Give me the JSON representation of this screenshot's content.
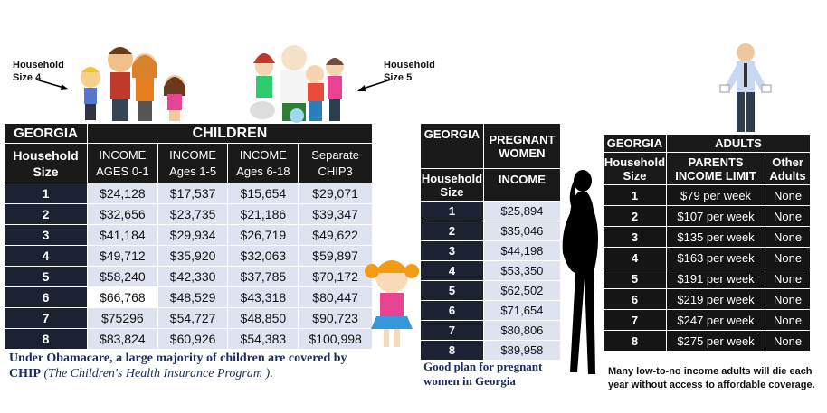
{
  "annotations": {
    "left_label": "Household\nSize 4",
    "right_label": "Household\nSize 5"
  },
  "children_table": {
    "state": "GEORGIA",
    "group": "CHILDREN",
    "size_header": "Household Size",
    "columns": [
      "INCOME\nAGES 0-1",
      "INCOME\nAges 1-5",
      "INCOME\nAges 6-18",
      "Separate\nCHIP3"
    ],
    "rows": [
      {
        "size": "1",
        "values": [
          "$24,128",
          "$17,537",
          "$15,654",
          "$29,071"
        ]
      },
      {
        "size": "2",
        "values": [
          "$32,656",
          "$23,735",
          "$21,186",
          "$39,347"
        ]
      },
      {
        "size": "3",
        "values": [
          "$41,184",
          "$29,934",
          "$26,719",
          "$49,622"
        ]
      },
      {
        "size": "4",
        "values": [
          "$49,712",
          "$35,920",
          "$32,063",
          "$59,897"
        ]
      },
      {
        "size": "5",
        "values": [
          "$58,240",
          "$42,330",
          "$37,785",
          "$70,172"
        ]
      },
      {
        "size": "6",
        "values": [
          "$66,768",
          "$48,529",
          "$43,318",
          "$80,447"
        ]
      },
      {
        "size": "7",
        "values": [
          "$75296",
          "$54,727",
          "$48,850",
          "$90,723"
        ]
      },
      {
        "size": "8",
        "values": [
          "$83,824",
          "$60,926",
          "$54,383",
          "$100,998"
        ]
      }
    ]
  },
  "children_caption": {
    "bold": "Under Obamacare, a large majority of children are covered by CHIP",
    "italic": "(The Children's Health Insurance Program )",
    "end": "."
  },
  "pregnant_table": {
    "state": "GEORGIA",
    "group": "PREGNANT WOMEN",
    "size_header": "Household Size",
    "income_header": "INCOME",
    "rows": [
      {
        "size": "1",
        "value": "$25,894"
      },
      {
        "size": "2",
        "value": "$35,046"
      },
      {
        "size": "3",
        "value": "$44,198"
      },
      {
        "size": "4",
        "value": "$53,350"
      },
      {
        "size": "5",
        "value": "$62,502"
      },
      {
        "size": "6",
        "value": "$71,654"
      },
      {
        "size": "7",
        "value": "$80,806"
      },
      {
        "size": "8",
        "value": "$89,958"
      }
    ]
  },
  "pregnant_caption": "Good plan for pregnant women in Georgia",
  "adults_table": {
    "state": "GEORGIA",
    "group": "ADULTS",
    "size_header": "Household Size",
    "limit_header": "PARENTS INCOME LIMIT",
    "other_header": "Other Adults",
    "rows": [
      {
        "size": "1",
        "limit": "$79 per week",
        "other": "None"
      },
      {
        "size": "2",
        "limit": "$107 per week",
        "other": "None"
      },
      {
        "size": "3",
        "limit": "$135 per week",
        "other": "None"
      },
      {
        "size": "4",
        "limit": "$163 per week",
        "other": "None"
      },
      {
        "size": "5",
        "limit": "$191 per week",
        "other": "None"
      },
      {
        "size": "6",
        "limit": "$219 per week",
        "other": "None"
      },
      {
        "size": "7",
        "limit": "$247 per week",
        "other": "None"
      },
      {
        "size": "8",
        "limit": "$275 per week",
        "other": "None"
      }
    ]
  },
  "adults_caption": "Many low-to-no income adults will die each year without access to affordable coverage.",
  "colors": {
    "header_black": "#1a1a1a",
    "size_navy": "#1c2232",
    "cell_lavender": "#dfe3ef"
  },
  "illustrations": [
    "cartoon-family-size-4",
    "cartoon-family-size-5",
    "cartoon-girl",
    "pregnant-woman-silhouette",
    "man-empty-pockets"
  ]
}
